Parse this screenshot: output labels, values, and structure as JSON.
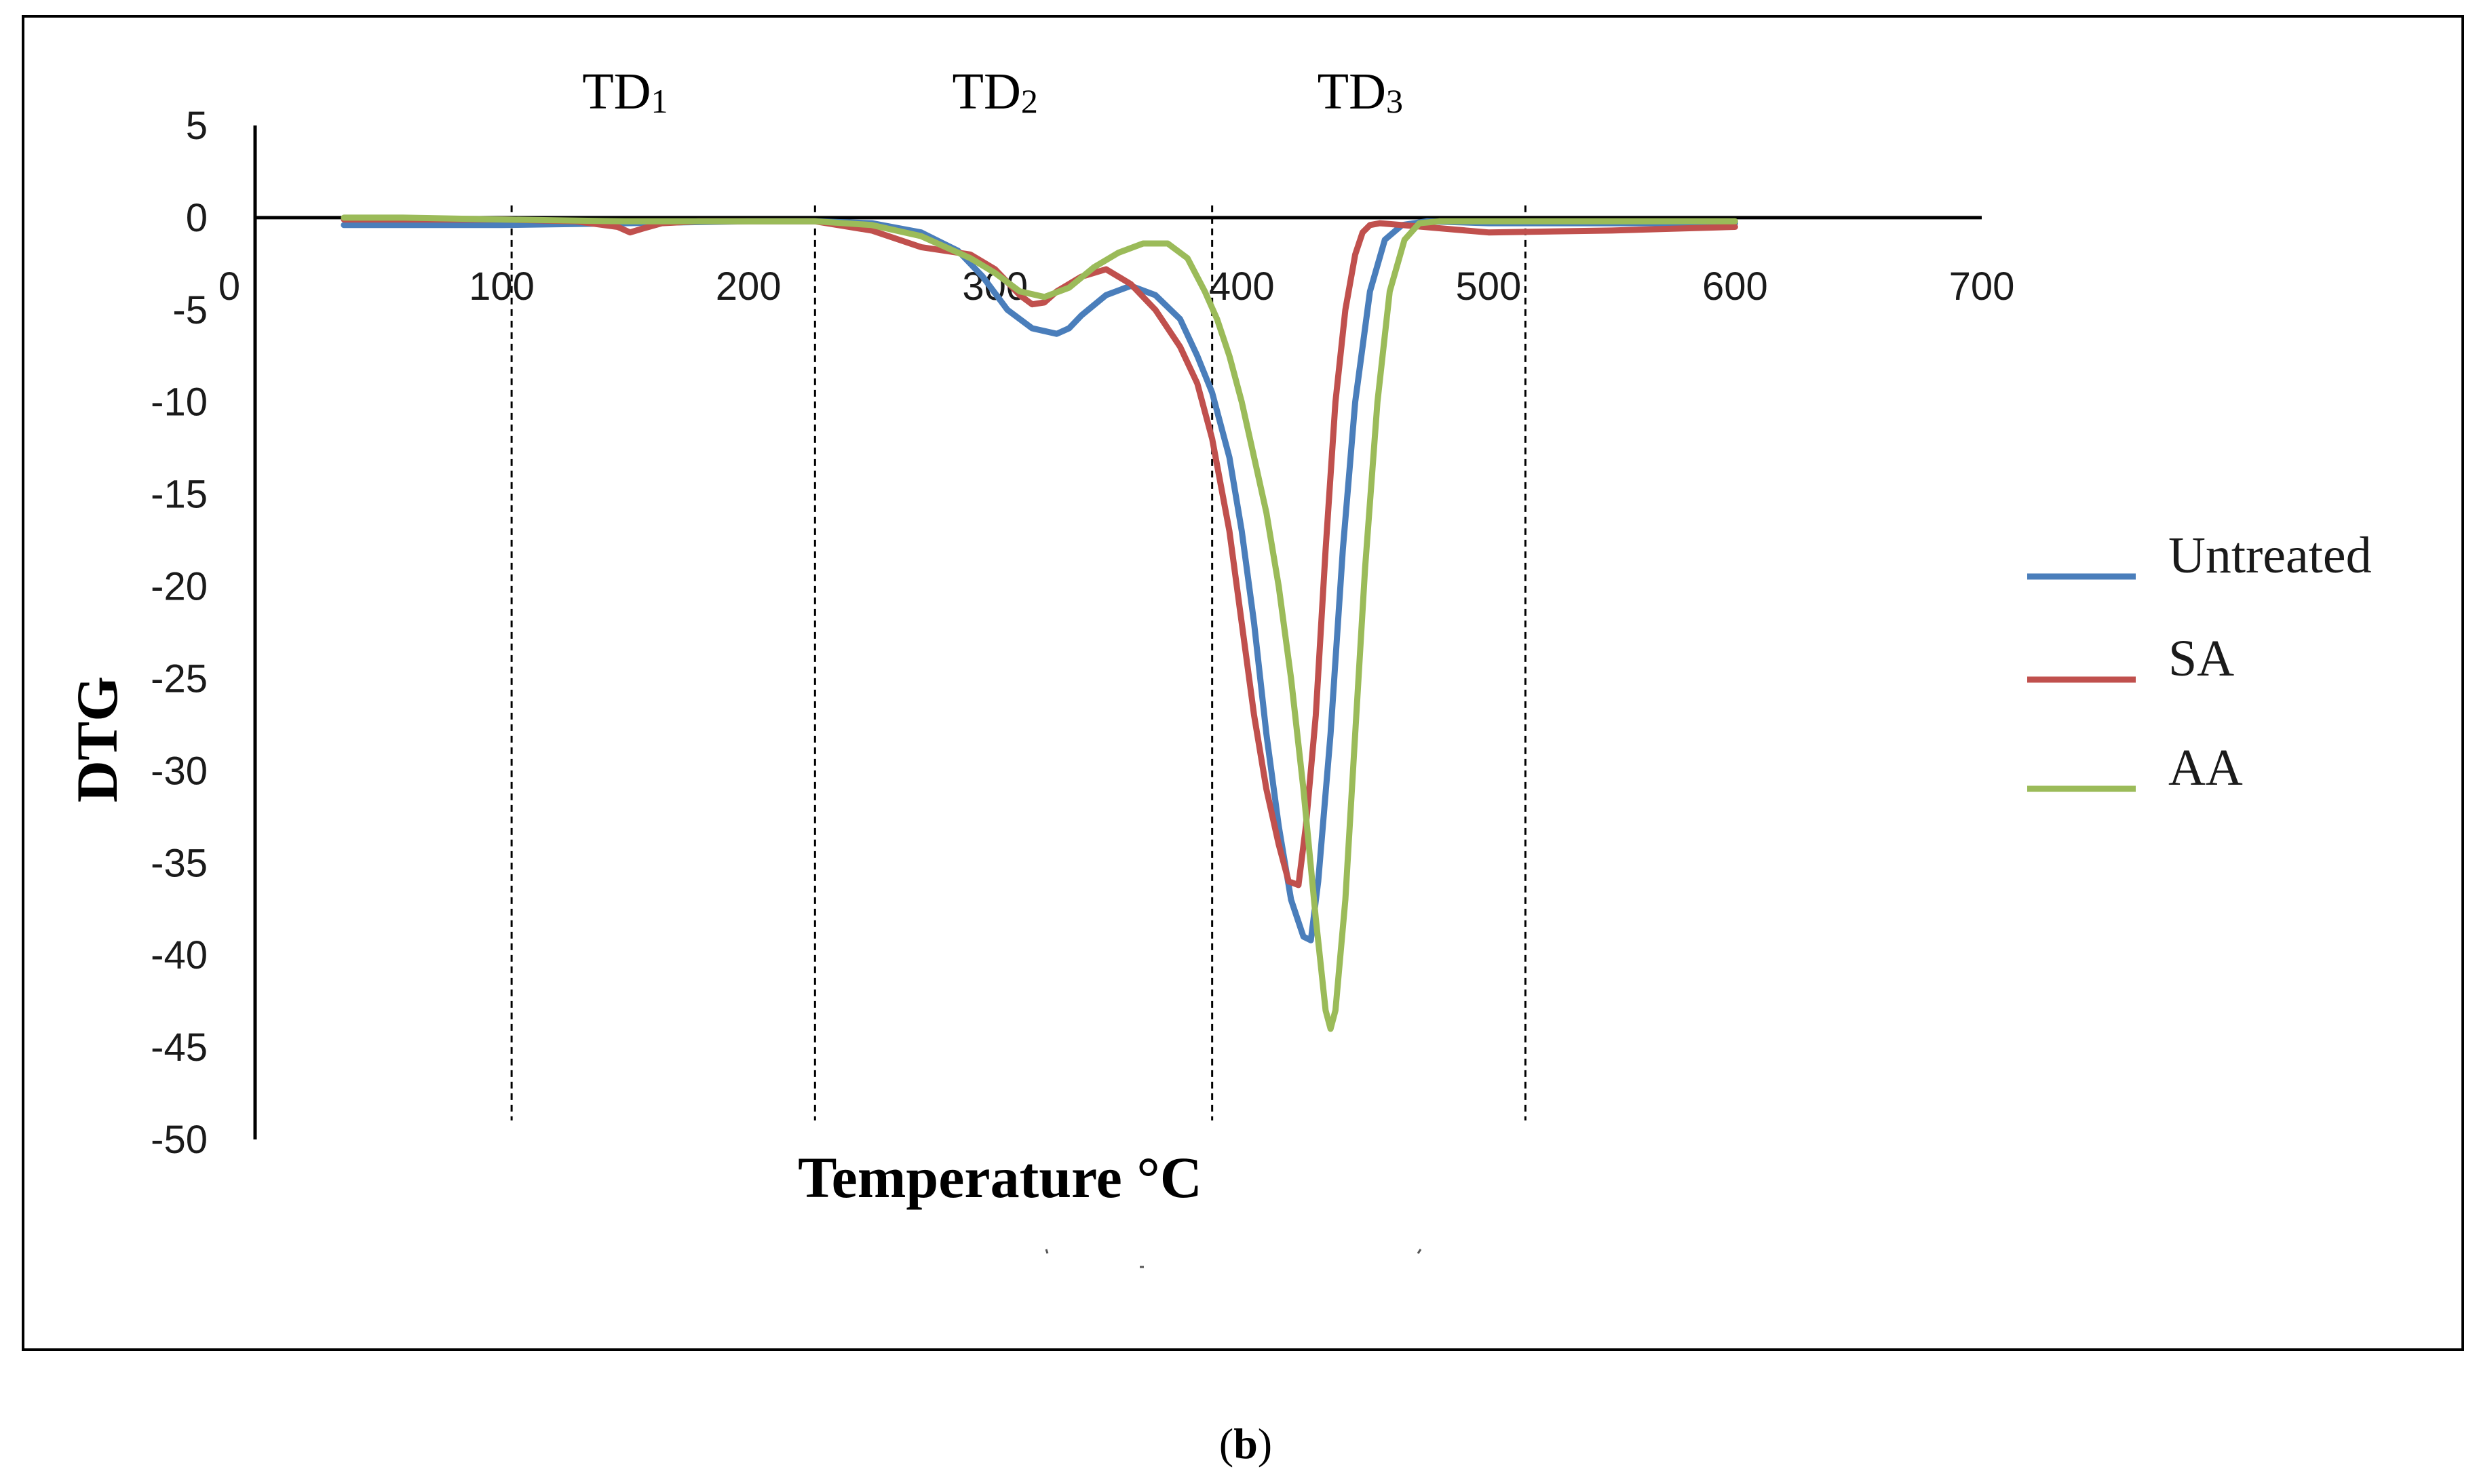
{
  "chart_data": {
    "type": "line",
    "title": "",
    "xlabel": "Temperature °C",
    "ylabel": "DTG",
    "xlim": [
      0,
      700
    ],
    "ylim": [
      -50,
      5
    ],
    "x_ticks": [
      "0",
      "100",
      "200",
      "300",
      "400",
      "500",
      "600",
      "700"
    ],
    "y_ticks": [
      "5",
      "0",
      "-5",
      "-10",
      "-15",
      "-20",
      "-25",
      "-30",
      "-35",
      "-40",
      "-45",
      "-50"
    ],
    "x_tick_values": [
      0,
      100,
      200,
      300,
      400,
      500,
      600,
      700
    ],
    "y_tick_values": [
      5,
      0,
      -5,
      -10,
      -15,
      -20,
      -25,
      -30,
      -35,
      -40,
      -45,
      -50
    ],
    "grid": false,
    "legend_position": "right",
    "zones": [
      {
        "label": "TD",
        "sub": "1",
        "boundary_x": 104
      },
      {
        "label": "TD",
        "sub": "2",
        "boundary_x": 227
      },
      {
        "label": "TD",
        "sub": "3",
        "boundary_x": 388
      }
    ],
    "extra_boundary_x": 515,
    "zone_label_x": [
      150,
      300,
      448
    ],
    "zone_line_ylim": [
      0,
      -47.5
    ],
    "series": [
      {
        "name": "Untreated",
        "color": "#4a7ebb",
        "x": [
          36,
          60,
          100,
          150,
          200,
          227,
          250,
          270,
          285,
          295,
          305,
          315,
          325,
          330,
          335,
          345,
          355,
          365,
          375,
          382,
          388,
          395,
          400,
          405,
          410,
          415,
          420,
          425,
          428,
          431,
          436,
          441,
          446,
          452,
          458,
          465,
          475,
          500,
          550,
          600
        ],
        "y": [
          -0.4,
          -0.4,
          -0.4,
          -0.3,
          -0.2,
          -0.2,
          -0.3,
          -0.8,
          -1.8,
          -3.2,
          -5.0,
          -6.0,
          -6.3,
          -6.0,
          -5.3,
          -4.2,
          -3.7,
          -4.2,
          -5.5,
          -7.5,
          -9.5,
          -13,
          -17,
          -22,
          -28,
          -33,
          -37,
          -39,
          -39.2,
          -36,
          -28,
          -18,
          -10,
          -4,
          -1.2,
          -0.4,
          -0.2,
          -0.3,
          -0.3,
          -0.3
        ]
      },
      {
        "name": "SA",
        "color": "#c0504d",
        "x": [
          36,
          60,
          100,
          130,
          147,
          152,
          157,
          165,
          180,
          200,
          227,
          250,
          270,
          290,
          300,
          310,
          315,
          320,
          325,
          335,
          345,
          355,
          365,
          375,
          382,
          388,
          395,
          400,
          405,
          410,
          415,
          419,
          423,
          426,
          430,
          434,
          438,
          442,
          446,
          449,
          452,
          456,
          465,
          500,
          550,
          600
        ],
        "y": [
          -0.1,
          -0.1,
          -0.1,
          -0.2,
          -0.5,
          -0.8,
          -0.6,
          -0.3,
          -0.2,
          -0.2,
          -0.2,
          -0.7,
          -1.6,
          -2.0,
          -2.8,
          -4.2,
          -4.7,
          -4.6,
          -4.0,
          -3.2,
          -2.8,
          -3.6,
          -5.0,
          -7.0,
          -9.0,
          -12,
          -17,
          -22,
          -27,
          -31,
          -34,
          -36,
          -36.2,
          -33,
          -27,
          -18,
          -10,
          -5,
          -2,
          -0.8,
          -0.4,
          -0.3,
          -0.4,
          -0.8,
          -0.7,
          -0.5
        ]
      },
      {
        "name": "AA",
        "color": "#9bbb59",
        "x": [
          36,
          60,
          100,
          150,
          200,
          227,
          250,
          270,
          290,
          300,
          310,
          320,
          330,
          340,
          350,
          360,
          370,
          378,
          385,
          390,
          395,
          400,
          405,
          410,
          415,
          420,
          425,
          430,
          434,
          436,
          438,
          442,
          446,
          450,
          455,
          460,
          466,
          472,
          480,
          500,
          550,
          600
        ],
        "y": [
          0.0,
          0.0,
          -0.1,
          -0.2,
          -0.2,
          -0.2,
          -0.4,
          -1.0,
          -2.2,
          -3.0,
          -4.0,
          -4.3,
          -3.8,
          -2.7,
          -1.9,
          -1.4,
          -1.4,
          -2.2,
          -4.0,
          -5.5,
          -7.5,
          -10,
          -13,
          -16,
          -20,
          -25,
          -31,
          -38,
          -43,
          -44,
          -43,
          -37,
          -28,
          -19,
          -10,
          -4,
          -1.2,
          -0.3,
          -0.2,
          -0.2,
          -0.2,
          -0.2
        ]
      }
    ]
  },
  "caption": {
    "open": "(",
    "letter": "b",
    "close": ")"
  }
}
